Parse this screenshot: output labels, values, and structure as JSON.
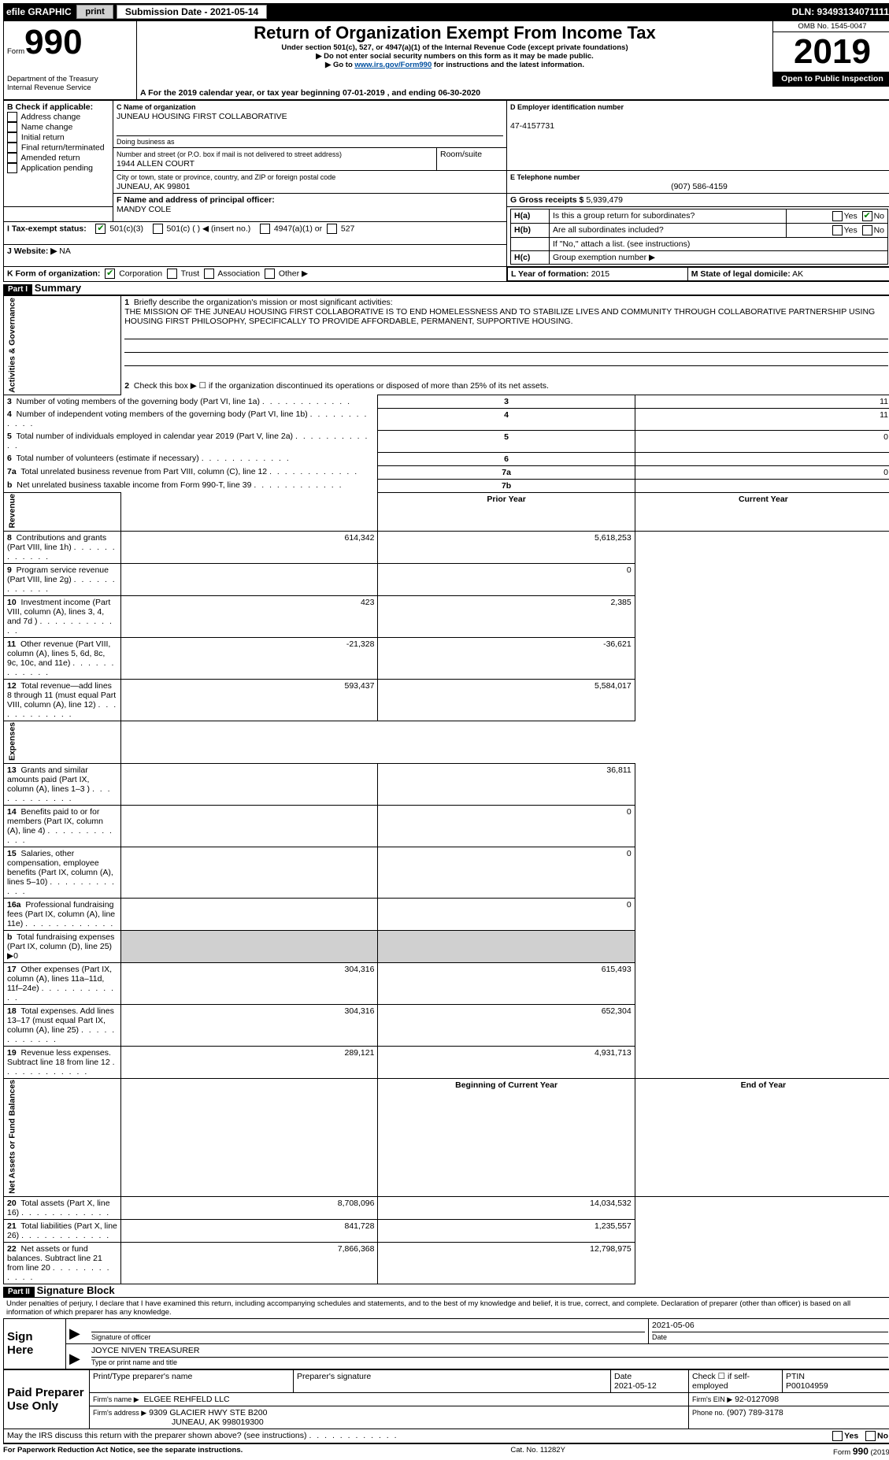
{
  "topbar": {
    "efile": "efile GRAPHIC",
    "print": "print",
    "submission_label": "Submission Date -",
    "submission_date": "2021-05-14",
    "dln_label": "DLN:",
    "dln": "93493134071111"
  },
  "header": {
    "form_word": "Form",
    "form_number": "990",
    "title": "Return of Organization Exempt From Income Tax",
    "subtitle": "Under section 501(c), 527, or 4947(a)(1) of the Internal Revenue Code (except private foundations)",
    "arrow1": "▶ Do not enter social security numbers on this form as it may be made public.",
    "arrow2_pre": "▶ Go to ",
    "arrow2_link": "www.irs.gov/Form990",
    "arrow2_post": " for instructions and the latest information.",
    "dept": "Department of the Treasury\nInternal Revenue Service",
    "omb": "OMB No. 1545-0047",
    "year": "2019",
    "open_to_public": "Open to Public Inspection"
  },
  "A": {
    "text": "For the 2019 calendar year, or tax year beginning ",
    "begin": "07-01-2019",
    "mid": " , and ending ",
    "end": "06-30-2020"
  },
  "B": {
    "label": "B Check if applicable:",
    "items": [
      "Address change",
      "Name change",
      "Initial return",
      "Final return/terminated",
      "Amended return",
      "Application pending"
    ]
  },
  "C": {
    "label": "C Name of organization",
    "name": "JUNEAU HOUSING FIRST COLLABORATIVE",
    "dba_label": "Doing business as",
    "street_label": "Number and street (or P.O. box if mail is not delivered to street address)",
    "room_label": "Room/suite",
    "street": "1944 ALLEN COURT",
    "city_label": "City or town, state or province, country, and ZIP or foreign postal code",
    "city": "JUNEAU, AK  99801"
  },
  "D": {
    "label": "D Employer identification number",
    "ein": "47-4157731"
  },
  "E": {
    "label": "E Telephone number",
    "phone": "(907) 586-4159"
  },
  "G": {
    "label": "G Gross receipts $",
    "value": "5,939,479"
  },
  "F": {
    "label": "F  Name and address of principal officer:",
    "name": "MANDY COLE"
  },
  "H": {
    "a": "Is this a group return for subordinates?",
    "b": "Are all subordinates included?",
    "b_note": "If \"No,\" attach a list. (see instructions)",
    "c": "Group exemption number ▶",
    "yes": "Yes",
    "no": "No",
    "Ha_prefix": "H(a)",
    "Hb_prefix": "H(b)",
    "Hc_prefix": "H(c)"
  },
  "I": {
    "label": "I   Tax-exempt status:",
    "opts": [
      "501(c)(3)",
      "501(c) (  ) ◀ (insert no.)",
      "4947(a)(1) or",
      "527"
    ]
  },
  "J": {
    "label": "J   Website: ▶",
    "value": "NA"
  },
  "K": {
    "label": "K Form of organization:",
    "opts": [
      "Corporation",
      "Trust",
      "Association",
      "Other ▶"
    ]
  },
  "L": {
    "label": "L Year of formation:",
    "value": "2015"
  },
  "M": {
    "label": "M State of legal domicile:",
    "value": "AK"
  },
  "partI": {
    "tag": "Part I",
    "title": "Summary",
    "sections": {
      "gov": "Activities & Governance",
      "rev": "Revenue",
      "exp": "Expenses",
      "net": "Net Assets or Fund Balances"
    },
    "line1_label": "Briefly describe the organization's mission or most significant activities:",
    "line1_text": "THE MISSION OF THE JUNEAU HOUSING FIRST COLLABORATIVE IS TO END HOMELESSNESS AND TO STABILIZE LIVES AND COMMUNITY THROUGH COLLABORATIVE PARTNERSHIP USING HOUSING FIRST PHILOSOPHY, SPECIFICALLY TO PROVIDE AFFORDABLE, PERMANENT, SUPPORTIVE HOUSING.",
    "line2": "Check this box ▶ ☐ if the organization discontinued its operations or disposed of more than 25% of its net assets.",
    "rows_gov": [
      {
        "n": "3",
        "label": "Number of voting members of the governing body (Part VI, line 1a)",
        "box": "3",
        "val": "11"
      },
      {
        "n": "4",
        "label": "Number of independent voting members of the governing body (Part VI, line 1b)",
        "box": "4",
        "val": "11"
      },
      {
        "n": "5",
        "label": "Total number of individuals employed in calendar year 2019 (Part V, line 2a)",
        "box": "5",
        "val": "0"
      },
      {
        "n": "6",
        "label": "Total number of volunteers (estimate if necessary)",
        "box": "6",
        "val": ""
      },
      {
        "n": "7a",
        "label": "Total unrelated business revenue from Part VIII, column (C), line 12",
        "box": "7a",
        "val": "0"
      },
      {
        "n": "b",
        "label": "Net unrelated business taxable income from Form 990-T, line 39",
        "box": "7b",
        "val": ""
      }
    ],
    "col_prior": "Prior Year",
    "col_current": "Current Year",
    "rows_rev": [
      {
        "n": "8",
        "label": "Contributions and grants (Part VIII, line 1h)",
        "p": "614,342",
        "c": "5,618,253"
      },
      {
        "n": "9",
        "label": "Program service revenue (Part VIII, line 2g)",
        "p": "",
        "c": "0"
      },
      {
        "n": "10",
        "label": "Investment income (Part VIII, column (A), lines 3, 4, and 7d )",
        "p": "423",
        "c": "2,385"
      },
      {
        "n": "11",
        "label": "Other revenue (Part VIII, column (A), lines 5, 6d, 8c, 9c, 10c, and 11e)",
        "p": "-21,328",
        "c": "-36,621"
      },
      {
        "n": "12",
        "label": "Total revenue—add lines 8 through 11 (must equal Part VIII, column (A), line 12)",
        "p": "593,437",
        "c": "5,584,017"
      }
    ],
    "rows_exp": [
      {
        "n": "13",
        "label": "Grants and similar amounts paid (Part IX, column (A), lines 1–3 )",
        "p": "",
        "c": "36,811"
      },
      {
        "n": "14",
        "label": "Benefits paid to or for members (Part IX, column (A), line 4)",
        "p": "",
        "c": "0"
      },
      {
        "n": "15",
        "label": "Salaries, other compensation, employee benefits (Part IX, column (A), lines 5–10)",
        "p": "",
        "c": "0"
      },
      {
        "n": "16a",
        "label": "Professional fundraising fees (Part IX, column (A), line 11e)",
        "p": "",
        "c": "0"
      },
      {
        "n": "b",
        "label": "Total fundraising expenses (Part IX, column (D), line 25) ▶0",
        "p": null,
        "c": null
      },
      {
        "n": "17",
        "label": "Other expenses (Part IX, column (A), lines 11a–11d, 11f–24e)",
        "p": "304,316",
        "c": "615,493"
      },
      {
        "n": "18",
        "label": "Total expenses. Add lines 13–17 (must equal Part IX, column (A), line 25)",
        "p": "304,316",
        "c": "652,304"
      },
      {
        "n": "19",
        "label": "Revenue less expenses. Subtract line 18 from line 12",
        "p": "289,121",
        "c": "4,931,713"
      }
    ],
    "col_begin": "Beginning of Current Year",
    "col_end": "End of Year",
    "rows_net": [
      {
        "n": "20",
        "label": "Total assets (Part X, line 16)",
        "p": "8,708,096",
        "c": "14,034,532"
      },
      {
        "n": "21",
        "label": "Total liabilities (Part X, line 26)",
        "p": "841,728",
        "c": "1,235,557"
      },
      {
        "n": "22",
        "label": "Net assets or fund balances. Subtract line 21 from line 20",
        "p": "7,866,368",
        "c": "12,798,975"
      }
    ]
  },
  "partII": {
    "tag": "Part II",
    "title": "Signature Block",
    "declaration": "Under penalties of perjury, I declare that I have examined this return, including accompanying schedules and statements, and to the best of my knowledge and belief, it is true, correct, and complete. Declaration of preparer (other than officer) is based on all information of which preparer has any knowledge.",
    "sign_here": "Sign Here",
    "sig_officer_label": "Signature of officer",
    "date_label": "Date",
    "sig_date": "2021-05-06",
    "officer_name": "JOYCE NIVEN  TREASURER",
    "officer_title_label": "Type or print name and title",
    "paid": {
      "title": "Paid Preparer Use Only",
      "name_label": "Print/Type preparer's name",
      "sig_label": "Preparer's signature",
      "date_label": "Date",
      "date": "2021-05-12",
      "check_label": "Check ☐ if self-employed",
      "ptin_label": "PTIN",
      "ptin": "P00104959",
      "firm_name_label": "Firm's name    ▶",
      "firm_name": "ELGEE REHFELD LLC",
      "firm_ein_label": "Firm's EIN ▶",
      "firm_ein": "92-0127098",
      "firm_addr_label": "Firm's address ▶",
      "firm_addr1": "9309 GLACIER HWY STE B200",
      "firm_addr2": "JUNEAU, AK  998019300",
      "phone_label": "Phone no.",
      "phone": "(907) 789-3178"
    },
    "discuss": "May the IRS discuss this return with the preparer shown above? (see instructions)"
  },
  "footer": {
    "paperwork": "For Paperwork Reduction Act Notice, see the separate instructions.",
    "cat": "Cat. No. 11282Y",
    "form": "Form 990 (2019)"
  }
}
